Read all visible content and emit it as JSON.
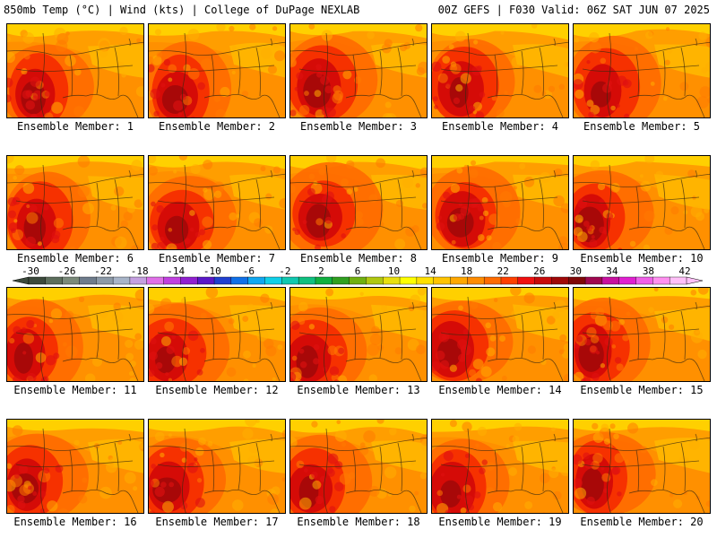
{
  "header": {
    "left_title": "850mb Temp (°C) | Wind (kts) | College of DuPage NEXLAB",
    "right_title": "00Z GEFS | F030 Valid: 06Z SAT JUN 07 2025"
  },
  "panels": [
    {
      "label": "Ensemble Member: 1"
    },
    {
      "label": "Ensemble Member: 2"
    },
    {
      "label": "Ensemble Member: 3"
    },
    {
      "label": "Ensemble Member: 4"
    },
    {
      "label": "Ensemble Member: 5"
    },
    {
      "label": "Ensemble Member: 6"
    },
    {
      "label": "Ensemble Member: 7"
    },
    {
      "label": "Ensemble Member: 8"
    },
    {
      "label": "Ensemble Member: 9"
    },
    {
      "label": "Ensemble Member: 10"
    },
    {
      "label": "Ensemble Member: 11"
    },
    {
      "label": "Ensemble Member: 12"
    },
    {
      "label": "Ensemble Member: 13"
    },
    {
      "label": "Ensemble Member: 14"
    },
    {
      "label": "Ensemble Member: 15"
    },
    {
      "label": "Ensemble Member: 16"
    },
    {
      "label": "Ensemble Member: 17"
    },
    {
      "label": "Ensemble Member: 18"
    },
    {
      "label": "Ensemble Member: 19"
    },
    {
      "label": "Ensemble Member: 20"
    }
  ],
  "colorbar": {
    "tick_labels": [
      "-30",
      "-26",
      "-22",
      "-18",
      "-14",
      "-10",
      "-6",
      "-2",
      "2",
      "6",
      "10",
      "14",
      "18",
      "22",
      "26",
      "30",
      "34",
      "38",
      "42"
    ],
    "colors": [
      "#3c4a3c",
      "#5c6e5c",
      "#7a8a7a",
      "#6e7c8c",
      "#8c9aa8",
      "#a8b4c8",
      "#c4a0e0",
      "#e070e8",
      "#c040e0",
      "#9020d0",
      "#5a18c8",
      "#2040d0",
      "#1070e8",
      "#10a8f0",
      "#10d0e8",
      "#10c8b0",
      "#10c080",
      "#10b040",
      "#30a020",
      "#70b010",
      "#b0c810",
      "#e8e010",
      "#ffff00",
      "#ffe000",
      "#ffc400",
      "#ffa800",
      "#ff8c00",
      "#ff6c00",
      "#ff4000",
      "#f01010",
      "#c80a0a",
      "#a00808",
      "#800808",
      "#a00850",
      "#c810a0",
      "#e020d0",
      "#f060e8",
      "#ff90f0",
      "#ffc0f8"
    ]
  }
}
